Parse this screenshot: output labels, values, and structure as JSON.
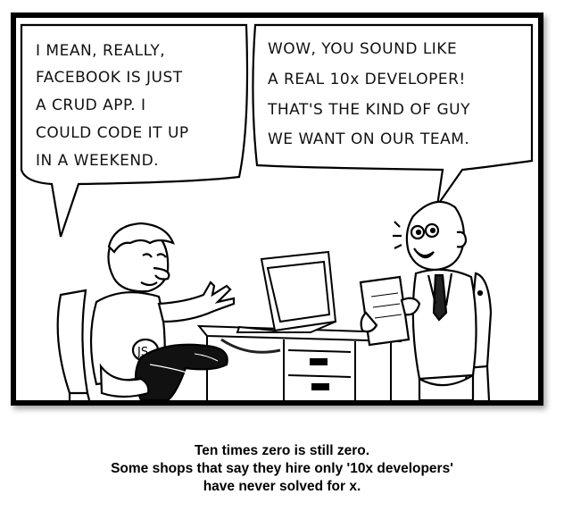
{
  "comic": {
    "left_bubble": [
      "I MEAN, REALLY,",
      "FACEBOOK IS JUST",
      "A CRUD APP. I",
      "COULD CODE IT UP",
      "IN A WEEKEND."
    ],
    "right_bubble": [
      "WOW, YOU SOUND LIKE",
      "A REAL 10x DEVELOPER!",
      "THAT'S THE KIND OF GUY",
      "WE WANT ON OUR TEAM."
    ],
    "shirt_text": "JS"
  },
  "caption": {
    "line1": "Ten times zero is still zero.",
    "line2": "Some shops that say they hire only '10x developers'",
    "line3": "have never solved for x."
  }
}
